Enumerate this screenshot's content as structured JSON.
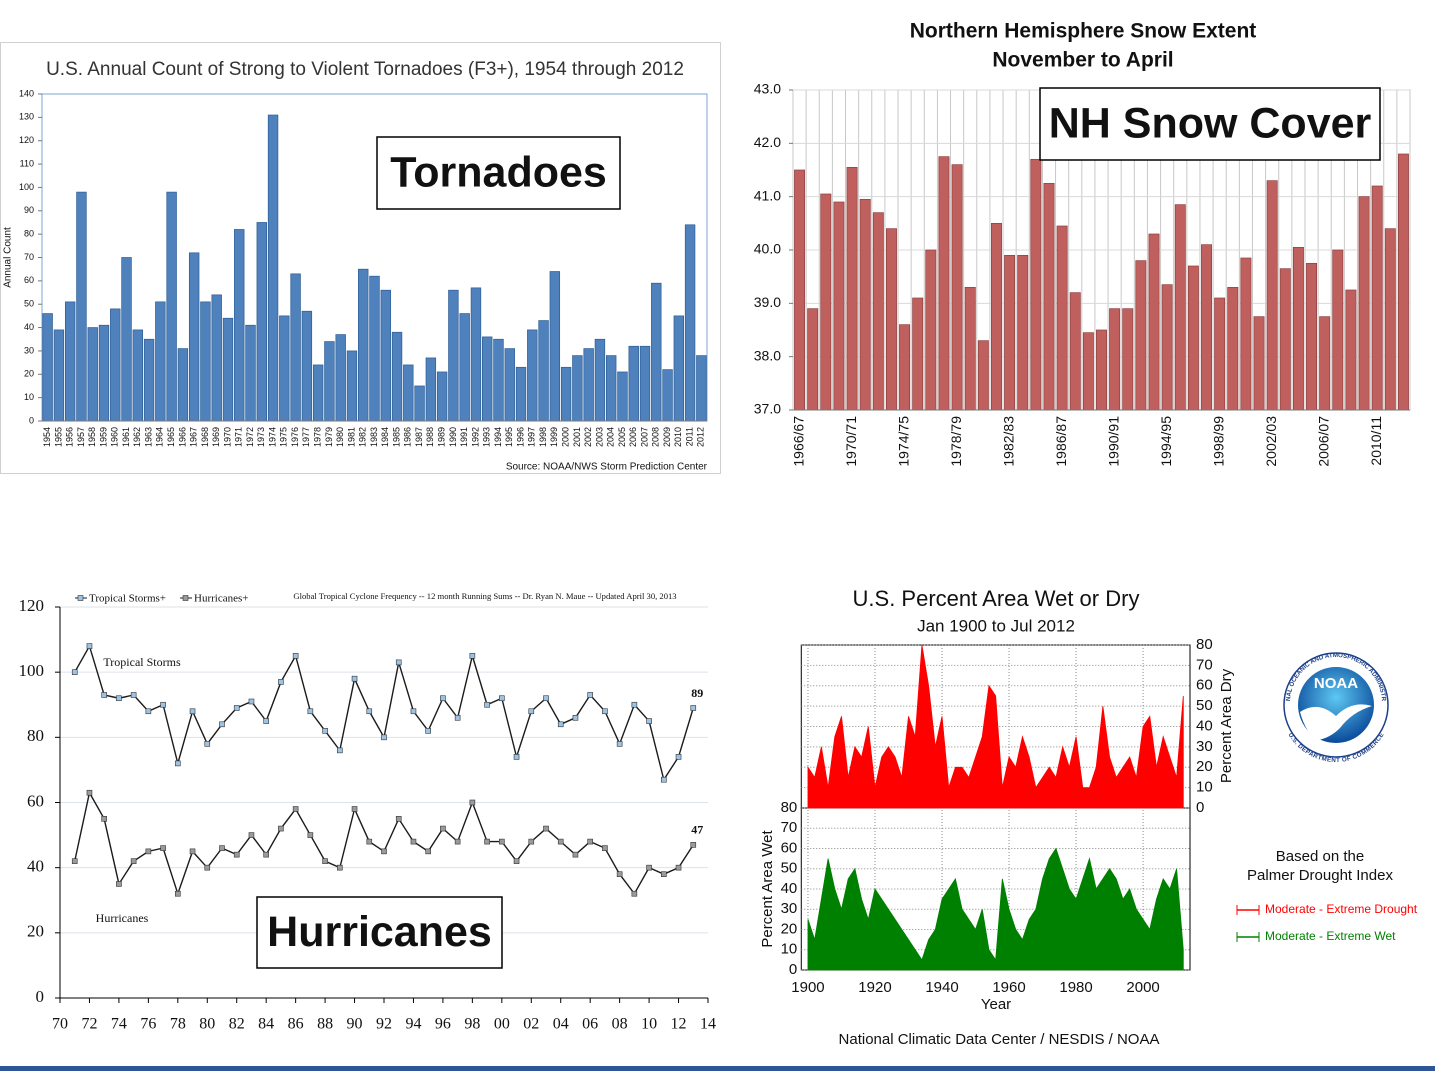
{
  "chart_data": [
    {
      "type": "bar",
      "title": "U.S. Annual Count of Strong to Violent Tornadoes (F3+), 1954 through 2012",
      "ylabel": "Annual Count",
      "source": "Source: NOAA/NWS Storm Prediction Center",
      "overlay_label": "Tornadoes",
      "color": "#4f81bd",
      "grid": false,
      "categories": [
        "1954",
        "1955",
        "1956",
        "1957",
        "1958",
        "1959",
        "1960",
        "1961",
        "1962",
        "1963",
        "1964",
        "1965",
        "1966",
        "1967",
        "1968",
        "1969",
        "1970",
        "1971",
        "1972",
        "1973",
        "1974",
        "1975",
        "1976",
        "1977",
        "1978",
        "1979",
        "1980",
        "1981",
        "1982",
        "1983",
        "1984",
        "1985",
        "1986",
        "1987",
        "1988",
        "1989",
        "1990",
        "1991",
        "1992",
        "1993",
        "1994",
        "1995",
        "1996",
        "1997",
        "1998",
        "1999",
        "2000",
        "2001",
        "2002",
        "2003",
        "2004",
        "2005",
        "2006",
        "2007",
        "2008",
        "2009",
        "2010",
        "2011",
        "2012"
      ],
      "values": [
        46,
        39,
        51,
        98,
        40,
        41,
        48,
        70,
        39,
        35,
        51,
        98,
        31,
        72,
        51,
        54,
        44,
        82,
        41,
        85,
        131,
        45,
        63,
        47,
        24,
        34,
        37,
        30,
        65,
        62,
        56,
        38,
        24,
        15,
        27,
        21,
        56,
        46,
        57,
        36,
        35,
        31,
        23,
        39,
        43,
        64,
        23,
        28,
        31,
        35,
        28,
        21,
        32,
        32,
        59,
        22,
        45,
        84,
        28
      ],
      "ylim": [
        0,
        140
      ],
      "yticks": [
        0,
        10,
        20,
        30,
        40,
        50,
        60,
        70,
        80,
        90,
        100,
        110,
        120,
        130,
        140
      ]
    },
    {
      "type": "bar",
      "title": "Northern Hemisphere Snow Extent",
      "subtitle": "November to April",
      "overlay_label": "NH Snow Cover",
      "color": "#c0605e",
      "grid": true,
      "categories": [
        "1966/67",
        null,
        null,
        null,
        "1970/71",
        null,
        null,
        null,
        "1974/75",
        null,
        null,
        null,
        "1978/79",
        null,
        null,
        null,
        "1982/83",
        null,
        null,
        null,
        "1986/87",
        null,
        null,
        null,
        "1990/91",
        null,
        null,
        null,
        "1994/95",
        null,
        null,
        null,
        "1998/99",
        null,
        null,
        null,
        "2002/03",
        null,
        null,
        null,
        "2006/07",
        null,
        null,
        null,
        "2010/11",
        null,
        null
      ],
      "values": [
        41.5,
        38.9,
        41.05,
        40.9,
        41.55,
        40.95,
        40.7,
        40.4,
        38.6,
        39.1,
        40.0,
        41.75,
        41.6,
        39.3,
        38.3,
        40.5,
        39.9,
        39.9,
        41.7,
        41.25,
        40.45,
        39.2,
        38.45,
        38.5,
        38.9,
        38.9,
        39.8,
        40.3,
        39.35,
        40.85,
        39.7,
        40.1,
        39.1,
        39.3,
        39.85,
        38.75,
        41.3,
        39.65,
        40.05,
        39.75,
        38.75,
        40.0,
        39.25,
        41.0,
        41.2,
        40.4,
        41.8
      ],
      "ylim": [
        37,
        43
      ],
      "yticks": [
        {
          "value": 37,
          "label": "37.0"
        },
        {
          "value": 38,
          "label": "38.0"
        },
        {
          "value": 39,
          "label": "39.0"
        },
        {
          "value": 40,
          "label": "40.0"
        },
        {
          "value": 41,
          "label": "41.0"
        },
        {
          "value": 42,
          "label": "42.0"
        },
        {
          "value": 43,
          "label": "43.0"
        }
      ]
    },
    {
      "type": "line",
      "title": "Global Tropical Cyclone Frequency -- 12 month Running Sums -- Dr. Ryan N. Maue -- Updated April 30, 2013",
      "annotations": [
        "Tropical Storms",
        "Hurricanes"
      ],
      "overlay_label": "Hurricanes",
      "grid": true,
      "x": [
        1971,
        1972,
        1973,
        1974,
        1975,
        1976,
        1977,
        1978,
        1979,
        1980,
        1981,
        1982,
        1983,
        1984,
        1985,
        1986,
        1987,
        1988,
        1989,
        1990,
        1991,
        1992,
        1993,
        1994,
        1995,
        1996,
        1997,
        1998,
        1999,
        2000,
        2001,
        2002,
        2003,
        2004,
        2005,
        2006,
        2007,
        2008,
        2009,
        2010,
        2011,
        2012,
        2013
      ],
      "series": [
        {
          "name": "Tropical Storms+",
          "color": "#9cc3e6",
          "values": [
            100,
            108,
            93,
            92,
            93,
            88,
            90,
            72,
            88,
            78,
            84,
            89,
            91,
            85,
            97,
            105,
            88,
            82,
            76,
            98,
            88,
            80,
            103,
            88,
            82,
            92,
            86,
            105,
            90,
            92,
            74,
            88,
            92,
            84,
            86,
            93,
            88,
            78,
            90,
            85,
            67,
            74,
            89
          ]
        },
        {
          "name": "Hurricanes+",
          "color": "#9a9a9a",
          "values": [
            42,
            63,
            55,
            35,
            42,
            45,
            46,
            32,
            45,
            40,
            46,
            44,
            50,
            44,
            52,
            58,
            50,
            42,
            40,
            58,
            48,
            45,
            55,
            48,
            45,
            52,
            48,
            60,
            48,
            48,
            42,
            48,
            52,
            48,
            44,
            48,
            46,
            38,
            32,
            40,
            38,
            40,
            47
          ]
        }
      ],
      "xlim": [
        1970,
        2014
      ],
      "xticks": [
        {
          "value": 1970,
          "label": "70"
        },
        {
          "value": 1972,
          "label": "72"
        },
        {
          "value": 1974,
          "label": "74"
        },
        {
          "value": 1976,
          "label": "76"
        },
        {
          "value": 1978,
          "label": "78"
        },
        {
          "value": 1980,
          "label": "80"
        },
        {
          "value": 1982,
          "label": "82"
        },
        {
          "value": 1984,
          "label": "84"
        },
        {
          "value": 1986,
          "label": "86"
        },
        {
          "value": 1988,
          "label": "88"
        },
        {
          "value": 1990,
          "label": "90"
        },
        {
          "value": 1992,
          "label": "92"
        },
        {
          "value": 1994,
          "label": "94"
        },
        {
          "value": 1996,
          "label": "96"
        },
        {
          "value": 1998,
          "label": "98"
        },
        {
          "value": 2000,
          "label": "00"
        },
        {
          "value": 2002,
          "label": "02"
        },
        {
          "value": 2004,
          "label": "04"
        },
        {
          "value": 2006,
          "label": "06"
        },
        {
          "value": 2008,
          "label": "08"
        },
        {
          "value": 2010,
          "label": "10"
        },
        {
          "value": 2012,
          "label": "12"
        },
        {
          "value": 2014,
          "label": "14"
        }
      ],
      "ylim": [
        0,
        120
      ],
      "yticks": [
        0,
        20,
        40,
        60,
        80,
        100,
        120
      ]
    },
    {
      "type": "area",
      "title": "U.S. Percent Area Wet or Dry",
      "subtitle": "Jan 1900 to Jul 2012",
      "xlabel": "Year",
      "ylabel": "Percent Area Wet",
      "y2label": "Percent Area Dry",
      "note": [
        "Based on the",
        "Palmer Drought Index"
      ],
      "source": "National Climatic Data Center / NESDIS / NOAA",
      "logo": {
        "text": "NOAA",
        "ring_top": "NATIONAL OCEANIC AND ATMOSPHERIC ADMINISTRATION",
        "ring_bottom": "U.S. DEPARTMENT OF COMMERCE"
      },
      "grid": true,
      "x": [
        1900,
        1902,
        1904,
        1906,
        1908,
        1910,
        1912,
        1914,
        1916,
        1918,
        1920,
        1922,
        1924,
        1926,
        1928,
        1930,
        1932,
        1934,
        1936,
        1938,
        1940,
        1942,
        1944,
        1946,
        1948,
        1950,
        1952,
        1954,
        1956,
        1958,
        1960,
        1962,
        1964,
        1966,
        1968,
        1970,
        1972,
        1974,
        1976,
        1978,
        1980,
        1982,
        1984,
        1986,
        1988,
        1990,
        1992,
        1994,
        1996,
        1998,
        2000,
        2002,
        2004,
        2006,
        2008,
        2010,
        2012
      ],
      "series": [
        {
          "name": "Moderate - Extreme Drought",
          "color": "#ff0000",
          "axis": "y2",
          "values": [
            20,
            15,
            30,
            10,
            35,
            45,
            15,
            30,
            25,
            40,
            10,
            25,
            30,
            25,
            15,
            45,
            35,
            80,
            60,
            30,
            45,
            10,
            20,
            20,
            15,
            25,
            35,
            60,
            55,
            10,
            25,
            20,
            35,
            25,
            10,
            15,
            20,
            15,
            30,
            20,
            35,
            10,
            10,
            20,
            50,
            25,
            15,
            20,
            25,
            15,
            40,
            45,
            20,
            35,
            25,
            15,
            55
          ]
        },
        {
          "name": "Moderate - Extreme Wet",
          "color": "#008000",
          "values": [
            25,
            15,
            35,
            55,
            40,
            30,
            45,
            50,
            35,
            25,
            40,
            35,
            30,
            25,
            20,
            15,
            10,
            5,
            15,
            20,
            35,
            40,
            45,
            30,
            25,
            20,
            30,
            10,
            5,
            45,
            30,
            20,
            15,
            25,
            30,
            45,
            55,
            60,
            50,
            40,
            35,
            45,
            55,
            40,
            45,
            50,
            45,
            35,
            40,
            30,
            25,
            20,
            35,
            45,
            40,
            50,
            10
          ]
        }
      ],
      "xlim": [
        1898,
        2014
      ],
      "xticks": [
        1900,
        1920,
        1940,
        1960,
        1980,
        2000
      ],
      "ylim": [
        0,
        80
      ],
      "yticks": [
        0,
        10,
        20,
        30,
        40,
        50,
        60,
        70,
        80
      ],
      "y2lim": [
        0,
        80
      ],
      "y2ticks": [
        0,
        10,
        20,
        30,
        40,
        50,
        60,
        70,
        80
      ]
    }
  ]
}
